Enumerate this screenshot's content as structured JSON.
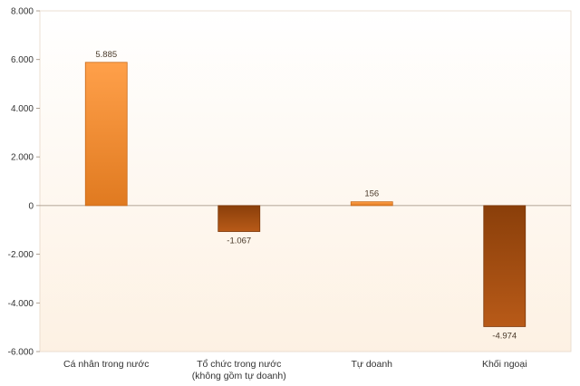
{
  "chart_data": {
    "type": "bar",
    "title": "",
    "xlabel": "",
    "ylabel": "",
    "categories": [
      [
        "Cá nhân trong nước"
      ],
      [
        "Tổ chức trong nước",
        "(không gồm tự doanh)"
      ],
      [
        "Tự doanh"
      ],
      [
        "Khối ngoại"
      ]
    ],
    "values": [
      5885,
      -1067,
      156,
      -4974
    ],
    "value_labels": [
      "5.885",
      "-1.067",
      "156",
      "-4.974"
    ],
    "ylim": [
      -6000,
      8000
    ],
    "yticks": [
      8000,
      6000,
      4000,
      2000,
      0,
      -2000,
      -4000,
      -6000
    ],
    "ytick_labels": [
      "8.000",
      "6.000",
      "4.000",
      "2.000",
      "0",
      "-2.000",
      "-4.000",
      "-6.000"
    ],
    "grid": false,
    "legend": "none",
    "colors": {
      "positive_top": "#ffa04a",
      "positive_bottom": "#e07a20",
      "negative_top": "#8a3f0a",
      "negative_bottom": "#b85a18",
      "plot_bg_top": "#ffffff",
      "plot_bg_bottom": "#fdf1e3"
    }
  }
}
